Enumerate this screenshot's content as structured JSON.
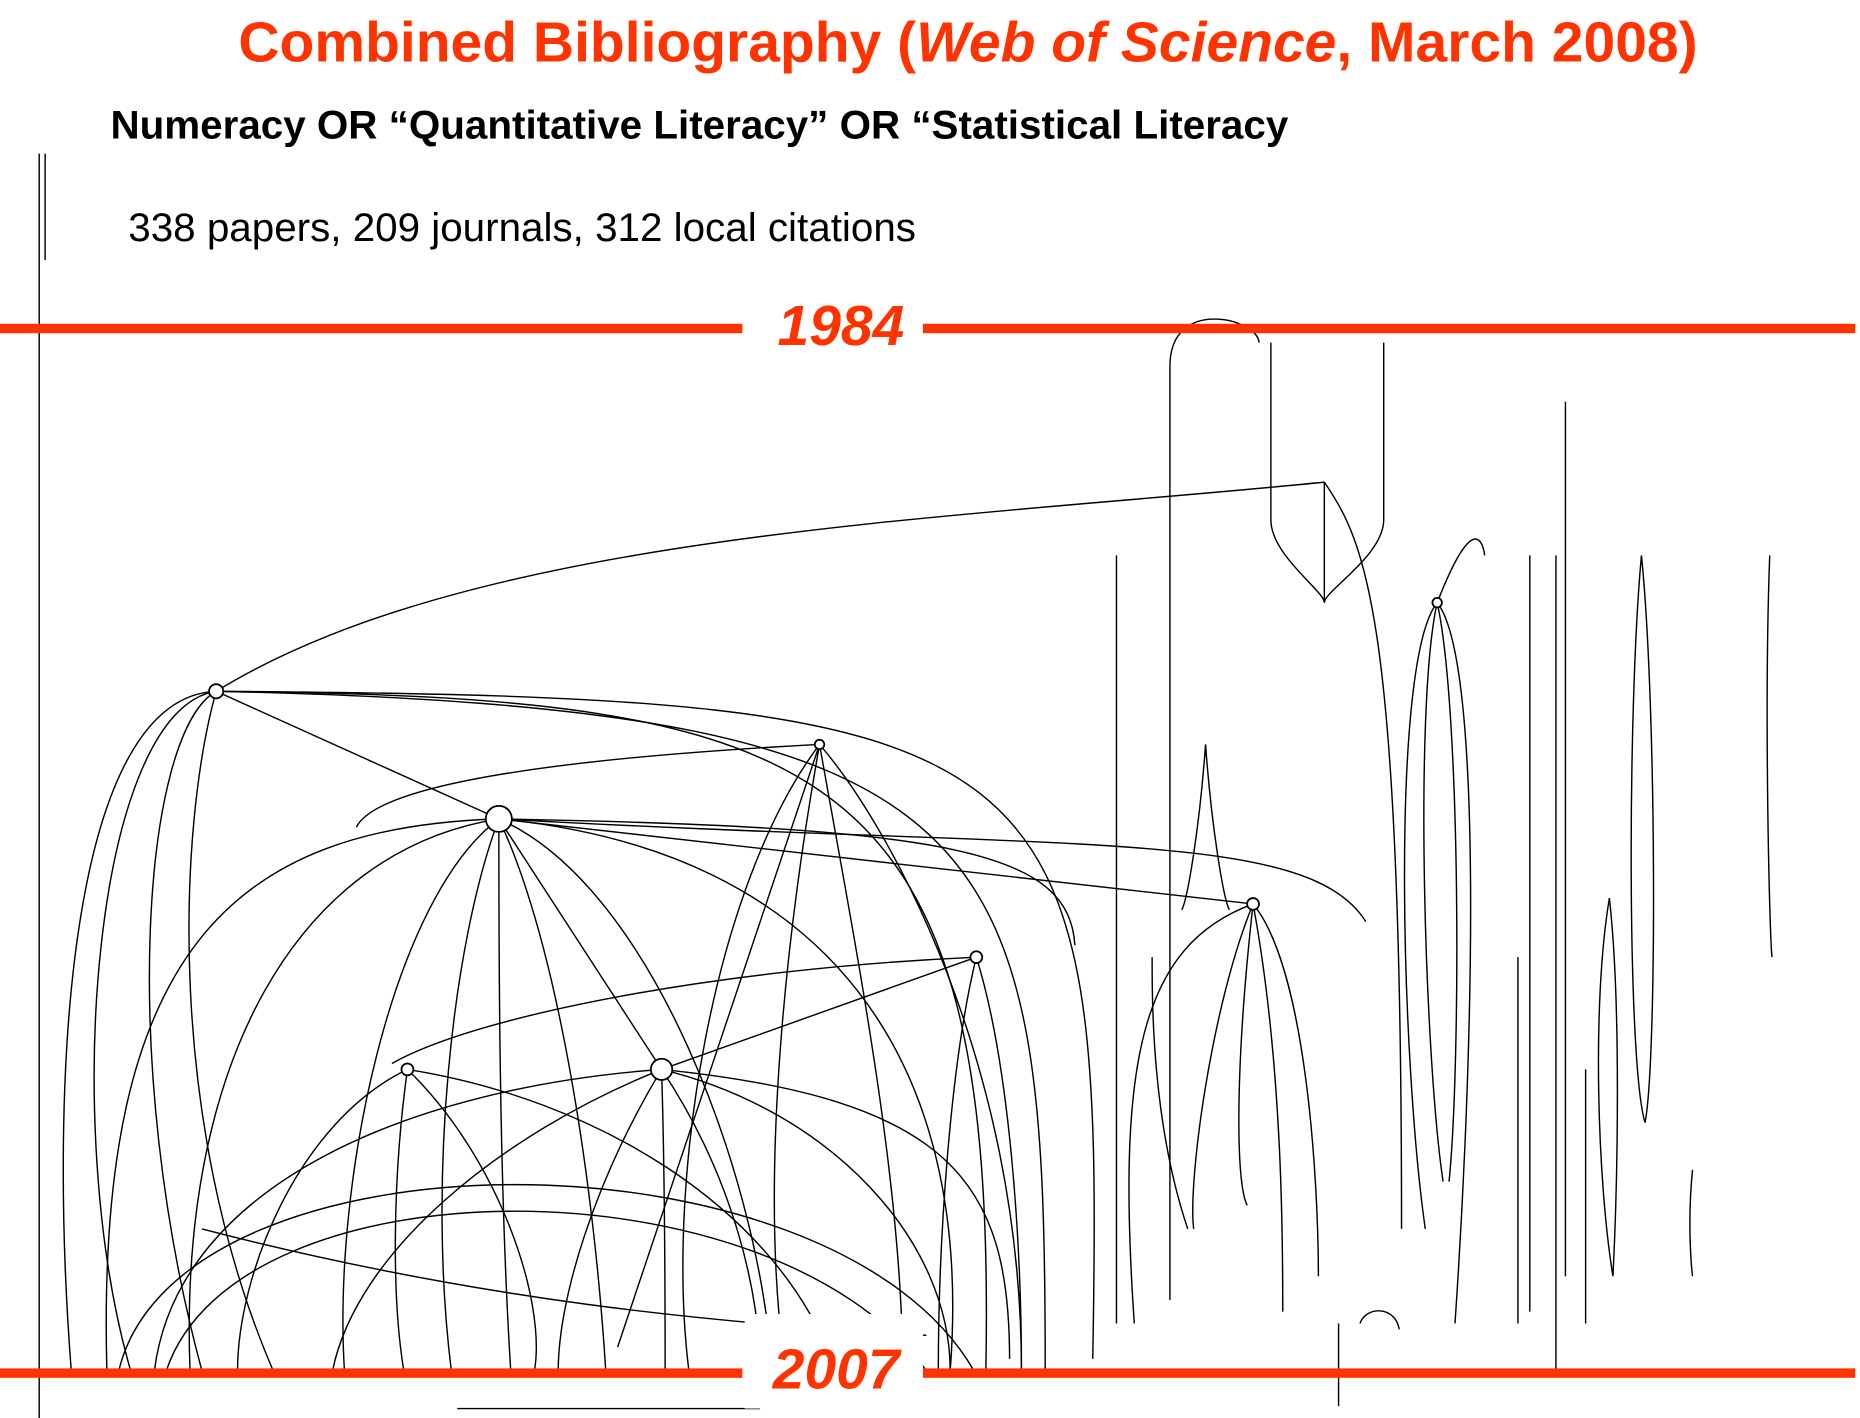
{
  "title": {
    "before": "Combined Bibliography (",
    "italic": "Web of Science",
    "after": ", March 2008)"
  },
  "subtitle": "Numeracy OR “Quantitative Literacy” OR “Statistical Literacy",
  "stats": "338 papers, 209 journals, 312 local citations",
  "start_year": "1984",
  "end_year": "2007"
}
